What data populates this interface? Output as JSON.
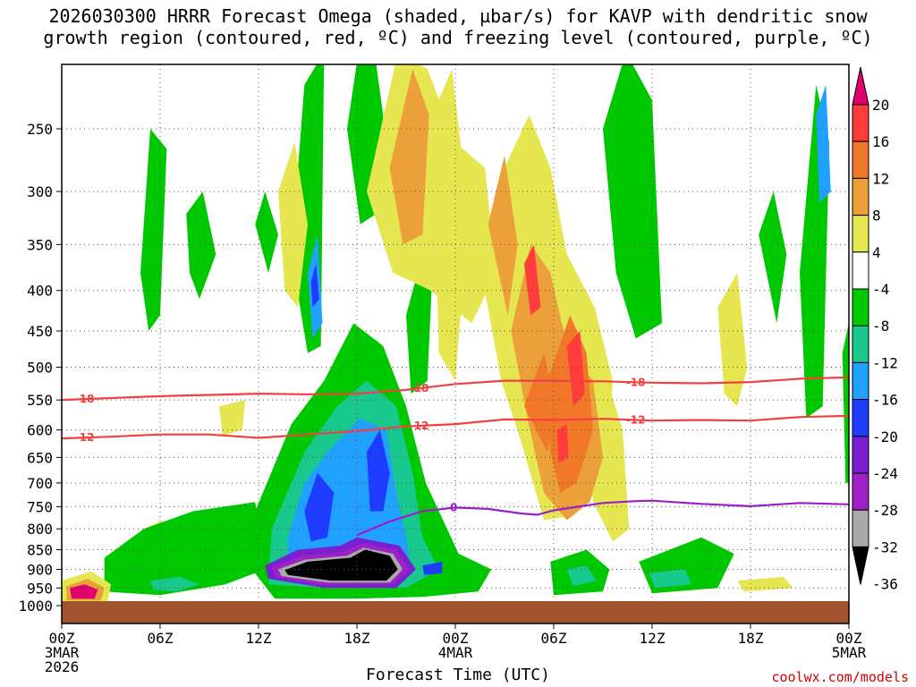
{
  "title": {
    "line1": "2026030300 HRRR Forecast Omega (shaded, µbar/s) for KAVP with dendritic snow",
    "line2": "growth region (contoured, red, ºC) and freezing level (contoured, purple, ºC)"
  },
  "credit": "coolwx.com/models",
  "chart_data": {
    "type": "heatmap",
    "title": "2026030300 HRRR Forecast Omega (shaded, µbar/s) for KAVP with dendritic snow growth region (contoured, red, ºC) and freezing level (contoured, purple, ºC)",
    "xlabel": "Forecast Time (UTC)",
    "ylabel": "",
    "x_range_hours": [
      0,
      48
    ],
    "y_range_hPa": [
      1000,
      200
    ],
    "y_ticks": [
      250,
      300,
      350,
      400,
      450,
      500,
      550,
      600,
      650,
      700,
      750,
      800,
      850,
      900,
      950,
      1000
    ],
    "x_ticks": [
      {
        "hour": 0,
        "lines": [
          "00Z",
          "3MAR",
          "2026"
        ]
      },
      {
        "hour": 6,
        "lines": [
          "06Z"
        ]
      },
      {
        "hour": 12,
        "lines": [
          "12Z"
        ]
      },
      {
        "hour": 18,
        "lines": [
          "18Z"
        ]
      },
      {
        "hour": 24,
        "lines": [
          "00Z",
          "4MAR"
        ]
      },
      {
        "hour": 30,
        "lines": [
          "06Z"
        ]
      },
      {
        "hour": 36,
        "lines": [
          "12Z"
        ]
      },
      {
        "hour": 42,
        "lines": [
          "18Z"
        ]
      },
      {
        "hour": 48,
        "lines": [
          "00Z",
          "5MAR"
        ]
      }
    ],
    "colorbar": {
      "labels": [
        "20",
        "16",
        "12",
        "8",
        "4",
        "-4",
        "-8",
        "-12",
        "-16",
        "-20",
        "-24",
        "-28",
        "-32",
        "-36"
      ],
      "colors": [
        "#e0006e",
        "#ff3c3c",
        "#f07828",
        "#eba03a",
        "#e6e650",
        "#ffffff",
        "#00c800",
        "#18c88c",
        "#20a0ff",
        "#1e3cff",
        "#7820d2",
        "#a020c8",
        "#aaaaaa"
      ]
    },
    "contours": [
      {
        "name": "dendritic -18",
        "color": "#f04040",
        "label": "-18",
        "points": [
          [
            0,
            550
          ],
          [
            3,
            547
          ],
          [
            6,
            544
          ],
          [
            9,
            542
          ],
          [
            12,
            540
          ],
          [
            15,
            541
          ],
          [
            18,
            540
          ],
          [
            21,
            534
          ],
          [
            24,
            525
          ],
          [
            27,
            520
          ],
          [
            30,
            520
          ],
          [
            33,
            521
          ],
          [
            36,
            523
          ],
          [
            39,
            524
          ],
          [
            42,
            522
          ],
          [
            45,
            517
          ],
          [
            48,
            515
          ]
        ]
      },
      {
        "name": "dendritic -12",
        "color": "#f04040",
        "label": "-12",
        "points": [
          [
            0,
            615
          ],
          [
            3,
            612
          ],
          [
            6,
            608
          ],
          [
            9,
            608
          ],
          [
            12,
            614
          ],
          [
            15,
            608
          ],
          [
            18,
            602
          ],
          [
            21,
            594
          ],
          [
            24,
            590
          ],
          [
            27,
            582
          ],
          [
            30,
            583
          ],
          [
            33,
            581
          ],
          [
            36,
            584
          ],
          [
            39,
            583
          ],
          [
            42,
            584
          ],
          [
            45,
            578
          ],
          [
            48,
            576
          ]
        ]
      },
      {
        "name": "freezing level 0",
        "color": "#9b1fc8",
        "label": "0",
        "points": [
          [
            18,
            815
          ],
          [
            20,
            783
          ],
          [
            22,
            760
          ],
          [
            24,
            752
          ],
          [
            26,
            755
          ],
          [
            28,
            765
          ],
          [
            29,
            768
          ],
          [
            30,
            758
          ],
          [
            33,
            742
          ],
          [
            35,
            738
          ],
          [
            36,
            737
          ],
          [
            39,
            744
          ],
          [
            42,
            749
          ],
          [
            45,
            742
          ],
          [
            48,
            745
          ]
        ]
      }
    ],
    "shaded_regions": [
      {
        "label": "black <= -36",
        "color": "#000000",
        "center": [
          19,
          880
        ]
      },
      {
        "label": "magenta >= 20",
        "color": "#e0006e",
        "center": [
          1.2,
          958
        ]
      },
      {
        "label": "orange 12-16",
        "color": "#f07828",
        "center": [
          31,
          450
        ]
      }
    ]
  }
}
